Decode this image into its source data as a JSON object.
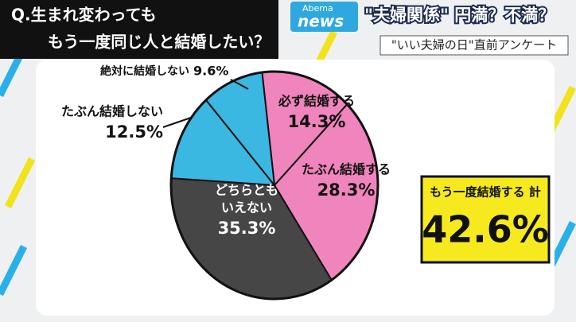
{
  "header": {
    "question": [
      "Q.生まれ変わっても",
      "もう一度同じ人と結婚したい？"
    ],
    "logo": [
      "Abema",
      "news"
    ],
    "headline": "\"夫婦関係\" 円満？不満？",
    "subheadline": "\"いい夫婦の日\"直前アンケート"
  },
  "chart_data": {
    "type": "pie",
    "categories": [
      [
        "必ず結婚する"
      ],
      [
        "たぶん結婚する"
      ],
      [
        "どちらとも",
        "いえない"
      ],
      [
        "たぶん結婚しない"
      ],
      [
        "絶対に結婚しない"
      ]
    ],
    "values": [
      14.3,
      28.3,
      35.3,
      12.5,
      9.6
    ],
    "value_labels": [
      "14.3%",
      "28.3%",
      "35.3%",
      "12.5%",
      "9.6%"
    ],
    "colors": [
      "#f084bc",
      "#f084bc",
      "#464646",
      "#3ab8e2",
      "#3ab8e2"
    ],
    "total": {
      "label": "もう一度結婚する 計",
      "value": 42.6,
      "value_label": "42.6%"
    }
  }
}
